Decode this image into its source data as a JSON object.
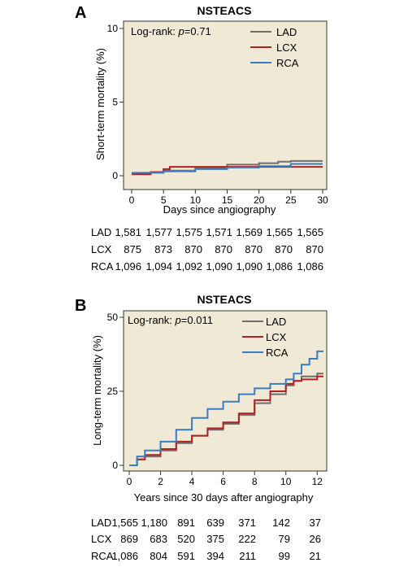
{
  "colors": {
    "LAD": "#6e6e6e",
    "LCX": "#b22222",
    "RCA": "#3a7cc4",
    "plot_bg": "#efe9d5"
  },
  "chart_data": [
    {
      "panel": "A",
      "type": "line",
      "title": "NSTEACS",
      "annotation_prefix": "Log-rank: ",
      "annotation_p": "p",
      "annotation_value": "=0.71",
      "xlabel": "Days since angiography",
      "ylabel": "Short-term mortality (%)",
      "xlim": [
        0,
        30
      ],
      "ylim": [
        0,
        10
      ],
      "xticks": [
        "0",
        "5",
        "10",
        "15",
        "20",
        "25",
        "30"
      ],
      "yticks": [
        "0",
        "5",
        "10"
      ],
      "legend": "top-right",
      "series": [
        {
          "name": "LAD",
          "x": [
            0,
            3,
            5,
            10,
            15,
            20,
            23,
            25,
            30
          ],
          "y": [
            0.15,
            0.25,
            0.35,
            0.5,
            0.75,
            0.85,
            0.95,
            1.0,
            1.0
          ]
        },
        {
          "name": "LCX",
          "x": [
            0,
            3,
            5,
            6,
            15,
            20,
            25,
            30
          ],
          "y": [
            0.1,
            0.25,
            0.45,
            0.6,
            0.6,
            0.6,
            0.6,
            0.6
          ]
        },
        {
          "name": "RCA",
          "x": [
            0,
            3,
            5,
            10,
            15,
            20,
            25,
            30
          ],
          "y": [
            0.2,
            0.2,
            0.3,
            0.45,
            0.55,
            0.65,
            0.8,
            0.8
          ]
        }
      ],
      "risk_table": {
        "rows": [
          {
            "label": "LAD",
            "values": [
              "1,581",
              "1,577",
              "1,575",
              "1,571",
              "1,569",
              "1,565",
              "1,565"
            ]
          },
          {
            "label": "LCX",
            "values": [
              "875",
              "873",
              "870",
              "870",
              "870",
              "870",
              "870"
            ]
          },
          {
            "label": "RCA",
            "values": [
              "1,096",
              "1,094",
              "1,092",
              "1,090",
              "1,090",
              "1,086",
              "1,086"
            ]
          }
        ]
      }
    },
    {
      "panel": "B",
      "type": "line",
      "title": "NSTEACS",
      "annotation_prefix": "Log-rank: ",
      "annotation_p": "p",
      "annotation_value": "=0.011",
      "xlabel": "Years since 30 days after angiography",
      "ylabel": "Long-term mortality (%)",
      "xlim": [
        0,
        12.4
      ],
      "ylim": [
        0,
        50
      ],
      "xticks": [
        "0",
        "2",
        "4",
        "6",
        "8",
        "10",
        "12"
      ],
      "yticks": [
        "0",
        "25",
        "50"
      ],
      "legend": "top-right",
      "series": [
        {
          "name": "LAD",
          "x": [
            0,
            0.5,
            1,
            2,
            3,
            4,
            5,
            6,
            7,
            8,
            9,
            10,
            10.5,
            11,
            12,
            12.4
          ],
          "y": [
            0,
            2,
            3,
            5,
            7.5,
            10,
            12,
            14,
            17,
            21,
            24,
            27,
            28.5,
            30,
            31,
            31
          ]
        },
        {
          "name": "LCX",
          "x": [
            0,
            0.5,
            1,
            2,
            3,
            4,
            5,
            6,
            7,
            8,
            9,
            10,
            10.5,
            11,
            12,
            12.4
          ],
          "y": [
            0,
            2,
            3.5,
            5.5,
            8,
            10,
            12.5,
            14.5,
            17.5,
            22,
            25,
            27.5,
            28.5,
            29,
            30,
            30
          ]
        },
        {
          "name": "RCA",
          "x": [
            0,
            0.5,
            1,
            2,
            3,
            4,
            5,
            6,
            7,
            8,
            9,
            10,
            10.5,
            11,
            11.5,
            12,
            12.4
          ],
          "y": [
            0,
            3,
            5,
            8,
            12,
            16,
            19,
            21.5,
            24,
            26,
            27.5,
            29,
            31,
            34,
            36,
            38.5,
            38.5
          ]
        }
      ],
      "risk_table": {
        "rows": [
          {
            "label": "LAD",
            "values": [
              "1,565",
              "1,180",
              "891",
              "639",
              "371",
              "142",
              "37"
            ]
          },
          {
            "label": "LCX",
            "values": [
              "869",
              "683",
              "520",
              "375",
              "222",
              "79",
              "26"
            ]
          },
          {
            "label": "RCA",
            "values": [
              "1,086",
              "804",
              "591",
              "394",
              "211",
              "99",
              "21"
            ]
          }
        ]
      }
    }
  ]
}
